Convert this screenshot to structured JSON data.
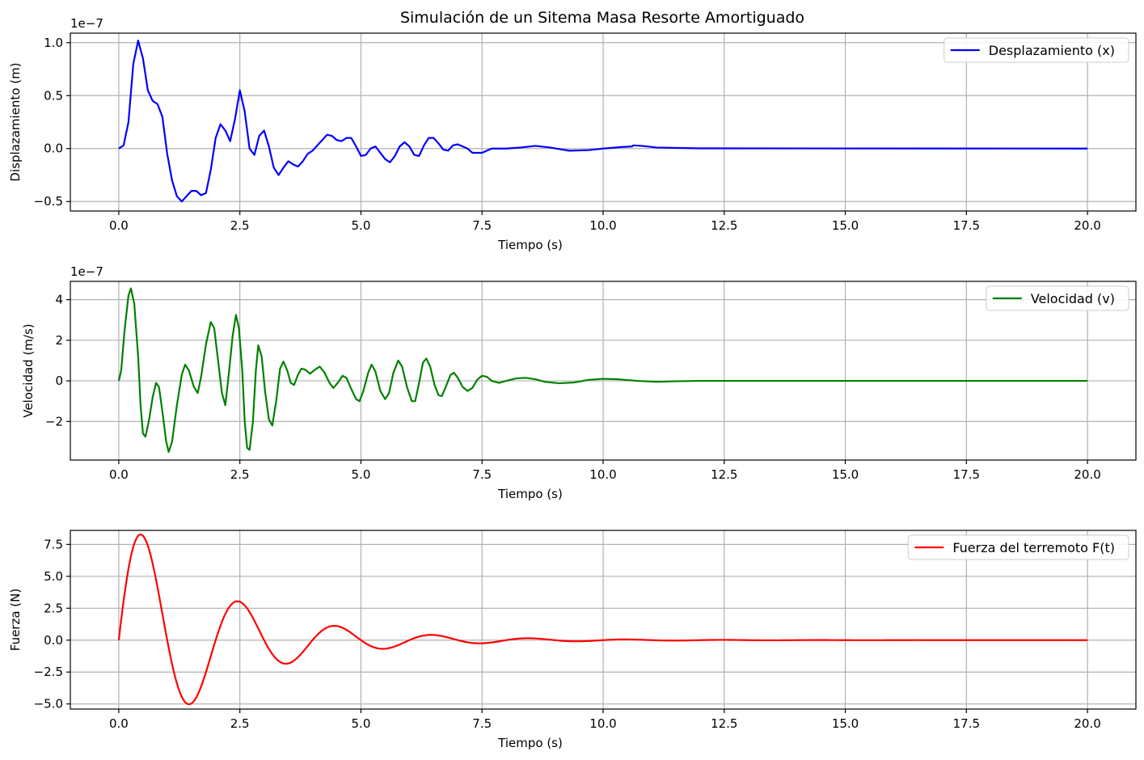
{
  "figure": {
    "title": "Simulación de un Sitema Masa Resorte Amortiguado"
  },
  "chart_data": [
    {
      "type": "line",
      "xlabel": "Tiempo (s)",
      "ylabel": "Displazamiento (m)",
      "offset_text": "1e−7",
      "xlim": [
        -1.0,
        21.0
      ],
      "ylim": [
        -0.59,
        1.09
      ],
      "xticks": [
        0,
        2.5,
        5,
        7.5,
        10,
        12.5,
        15,
        17.5,
        20
      ],
      "xtick_labels": [
        "0.0",
        "2.5",
        "5.0",
        "7.5",
        "10.0",
        "12.5",
        "15.0",
        "17.5",
        "20.0"
      ],
      "yticks": [
        -0.5,
        0,
        0.5,
        1.0
      ],
      "ytick_labels": [
        "−0.5",
        "0.0",
        "0.5",
        "1.0"
      ],
      "grid": true,
      "legend_position": "upper right",
      "series": [
        {
          "name": "Desplazamiento (x)",
          "color": "#0000ff",
          "points": [
            [
              0,
              0
            ],
            [
              0.1,
              0.03
            ],
            [
              0.2,
              0.25
            ],
            [
              0.3,
              0.8
            ],
            [
              0.4,
              1.02
            ],
            [
              0.5,
              0.85
            ],
            [
              0.6,
              0.55
            ],
            [
              0.7,
              0.45
            ],
            [
              0.8,
              0.42
            ],
            [
              0.9,
              0.3
            ],
            [
              1.0,
              -0.05
            ],
            [
              1.1,
              -0.3
            ],
            [
              1.2,
              -0.45
            ],
            [
              1.3,
              -0.5
            ],
            [
              1.4,
              -0.45
            ],
            [
              1.5,
              -0.4
            ],
            [
              1.6,
              -0.4
            ],
            [
              1.7,
              -0.44
            ],
            [
              1.8,
              -0.42
            ],
            [
              1.9,
              -0.2
            ],
            [
              2.0,
              0.1
            ],
            [
              2.1,
              0.23
            ],
            [
              2.2,
              0.17
            ],
            [
              2.3,
              0.07
            ],
            [
              2.4,
              0.28
            ],
            [
              2.5,
              0.55
            ],
            [
              2.6,
              0.35
            ],
            [
              2.7,
              0.0
            ],
            [
              2.8,
              -0.06
            ],
            [
              2.9,
              0.12
            ],
            [
              3.0,
              0.17
            ],
            [
              3.1,
              0.02
            ],
            [
              3.2,
              -0.18
            ],
            [
              3.3,
              -0.25
            ],
            [
              3.4,
              -0.18
            ],
            [
              3.5,
              -0.12
            ],
            [
              3.6,
              -0.15
            ],
            [
              3.7,
              -0.17
            ],
            [
              3.8,
              -0.12
            ],
            [
              3.9,
              -0.05
            ],
            [
              4.0,
              -0.02
            ],
            [
              4.1,
              0.03
            ],
            [
              4.2,
              0.08
            ],
            [
              4.3,
              0.13
            ],
            [
              4.4,
              0.12
            ],
            [
              4.5,
              0.08
            ],
            [
              4.6,
              0.07
            ],
            [
              4.7,
              0.1
            ],
            [
              4.8,
              0.1
            ],
            [
              4.9,
              0.02
            ],
            [
              5.0,
              -0.07
            ],
            [
              5.1,
              -0.06
            ],
            [
              5.2,
              0.0
            ],
            [
              5.3,
              0.02
            ],
            [
              5.4,
              -0.04
            ],
            [
              5.5,
              -0.1
            ],
            [
              5.6,
              -0.13
            ],
            [
              5.7,
              -0.07
            ],
            [
              5.8,
              0.02
            ],
            [
              5.9,
              0.06
            ],
            [
              6.0,
              0.02
            ],
            [
              6.1,
              -0.06
            ],
            [
              6.2,
              -0.07
            ],
            [
              6.3,
              0.03
            ],
            [
              6.4,
              0.1
            ],
            [
              6.5,
              0.1
            ],
            [
              6.6,
              0.05
            ],
            [
              6.7,
              -0.01
            ],
            [
              6.8,
              -0.02
            ],
            [
              6.9,
              0.03
            ],
            [
              7.0,
              0.04
            ],
            [
              7.2,
              0.0
            ],
            [
              7.3,
              -0.04
            ],
            [
              7.5,
              -0.04
            ],
            [
              7.7,
              0.0
            ],
            [
              8.0,
              0.0
            ],
            [
              8.3,
              0.01
            ],
            [
              8.6,
              0.025
            ],
            [
              8.9,
              0.01
            ],
            [
              9.3,
              -0.02
            ],
            [
              9.7,
              -0.015
            ],
            [
              10.0,
              0.0
            ],
            [
              10.4,
              0.015
            ],
            [
              10.6,
              0.02
            ],
            [
              10.62,
              0.03
            ],
            [
              10.8,
              0.025
            ],
            [
              11.1,
              0.01
            ],
            [
              12.0,
              0.002
            ],
            [
              20.0,
              0.0
            ]
          ]
        }
      ]
    },
    {
      "type": "line",
      "xlabel": "Tiempo (s)",
      "ylabel": "Velocidad (m/s)",
      "offset_text": "1e−7",
      "xlim": [
        -1.0,
        21.0
      ],
      "ylim": [
        -3.9,
        4.9
      ],
      "xticks": [
        0,
        2.5,
        5,
        7.5,
        10,
        12.5,
        15,
        17.5,
        20
      ],
      "xtick_labels": [
        "0.0",
        "2.5",
        "5.0",
        "7.5",
        "10.0",
        "12.5",
        "15.0",
        "17.5",
        "20.0"
      ],
      "yticks": [
        -2,
        0,
        2,
        4
      ],
      "ytick_labels": [
        "−2",
        "0",
        "2",
        "4"
      ],
      "grid": true,
      "legend_position": "upper right",
      "series": [
        {
          "name": "Velocidad (v)",
          "color": "#008000",
          "points": [
            [
              0,
              0
            ],
            [
              0.05,
              0.5
            ],
            [
              0.12,
              2.5
            ],
            [
              0.2,
              4.2
            ],
            [
              0.25,
              4.55
            ],
            [
              0.32,
              3.8
            ],
            [
              0.4,
              1.2
            ],
            [
              0.45,
              -1.2
            ],
            [
              0.5,
              -2.6
            ],
            [
              0.55,
              -2.75
            ],
            [
              0.62,
              -2.0
            ],
            [
              0.7,
              -0.8
            ],
            [
              0.77,
              -0.1
            ],
            [
              0.83,
              -0.3
            ],
            [
              0.9,
              -1.5
            ],
            [
              0.98,
              -3.0
            ],
            [
              1.03,
              -3.5
            ],
            [
              1.1,
              -3.0
            ],
            [
              1.2,
              -1.2
            ],
            [
              1.3,
              0.3
            ],
            [
              1.37,
              0.8
            ],
            [
              1.45,
              0.5
            ],
            [
              1.55,
              -0.3
            ],
            [
              1.63,
              -0.6
            ],
            [
              1.7,
              0.2
            ],
            [
              1.8,
              1.8
            ],
            [
              1.9,
              2.9
            ],
            [
              1.97,
              2.6
            ],
            [
              2.05,
              1.0
            ],
            [
              2.13,
              -0.6
            ],
            [
              2.2,
              -1.2
            ],
            [
              2.27,
              0.3
            ],
            [
              2.35,
              2.2
            ],
            [
              2.42,
              3.25
            ],
            [
              2.48,
              2.6
            ],
            [
              2.55,
              0.5
            ],
            [
              2.6,
              -2.0
            ],
            [
              2.65,
              -3.3
            ],
            [
              2.7,
              -3.4
            ],
            [
              2.77,
              -2.0
            ],
            [
              2.83,
              0.5
            ],
            [
              2.88,
              1.75
            ],
            [
              2.95,
              1.2
            ],
            [
              3.02,
              -0.5
            ],
            [
              3.1,
              -1.9
            ],
            [
              3.17,
              -2.2
            ],
            [
              3.25,
              -1.0
            ],
            [
              3.33,
              0.6
            ],
            [
              3.4,
              0.95
            ],
            [
              3.48,
              0.5
            ],
            [
              3.55,
              -0.1
            ],
            [
              3.62,
              -0.2
            ],
            [
              3.7,
              0.3
            ],
            [
              3.77,
              0.6
            ],
            [
              3.85,
              0.55
            ],
            [
              3.95,
              0.35
            ],
            [
              4.05,
              0.55
            ],
            [
              4.15,
              0.7
            ],
            [
              4.25,
              0.4
            ],
            [
              4.35,
              -0.1
            ],
            [
              4.43,
              -0.35
            ],
            [
              4.52,
              -0.1
            ],
            [
              4.62,
              0.25
            ],
            [
              4.7,
              0.15
            ],
            [
              4.8,
              -0.4
            ],
            [
              4.9,
              -0.9
            ],
            [
              4.97,
              -1.0
            ],
            [
              5.05,
              -0.5
            ],
            [
              5.15,
              0.4
            ],
            [
              5.22,
              0.8
            ],
            [
              5.3,
              0.45
            ],
            [
              5.4,
              -0.5
            ],
            [
              5.5,
              -0.9
            ],
            [
              5.58,
              -0.6
            ],
            [
              5.67,
              0.4
            ],
            [
              5.77,
              1.0
            ],
            [
              5.85,
              0.7
            ],
            [
              5.95,
              -0.3
            ],
            [
              6.05,
              -1.0
            ],
            [
              6.12,
              -1.0
            ],
            [
              6.2,
              -0.1
            ],
            [
              6.28,
              0.9
            ],
            [
              6.35,
              1.1
            ],
            [
              6.43,
              0.7
            ],
            [
              6.52,
              -0.2
            ],
            [
              6.6,
              -0.7
            ],
            [
              6.67,
              -0.75
            ],
            [
              6.75,
              -0.3
            ],
            [
              6.85,
              0.3
            ],
            [
              6.92,
              0.4
            ],
            [
              7.0,
              0.15
            ],
            [
              7.1,
              -0.3
            ],
            [
              7.2,
              -0.5
            ],
            [
              7.3,
              -0.35
            ],
            [
              7.4,
              0.05
            ],
            [
              7.5,
              0.25
            ],
            [
              7.6,
              0.2
            ],
            [
              7.7,
              0.0
            ],
            [
              7.85,
              -0.1
            ],
            [
              8.0,
              0.0
            ],
            [
              8.2,
              0.12
            ],
            [
              8.4,
              0.15
            ],
            [
              8.6,
              0.08
            ],
            [
              8.8,
              -0.05
            ],
            [
              9.1,
              -0.12
            ],
            [
              9.4,
              -0.08
            ],
            [
              9.7,
              0.05
            ],
            [
              10.0,
              0.1
            ],
            [
              10.3,
              0.08
            ],
            [
              10.7,
              0.0
            ],
            [
              11.1,
              -0.05
            ],
            [
              11.5,
              -0.02
            ],
            [
              12.0,
              0.0
            ],
            [
              20.0,
              0.0
            ]
          ]
        }
      ]
    },
    {
      "type": "line",
      "xlabel": "Tiempo (s)",
      "ylabel": "Fuerza (N)",
      "xlim": [
        -1.0,
        21.0
      ],
      "ylim": [
        -5.4,
        8.6
      ],
      "xticks": [
        0,
        2.5,
        5,
        7.5,
        10,
        12.5,
        15,
        17.5,
        20
      ],
      "xtick_labels": [
        "0.0",
        "2.5",
        "5.0",
        "7.5",
        "10.0",
        "12.5",
        "15.0",
        "17.5",
        "20.0"
      ],
      "yticks": [
        -5.0,
        -2.5,
        0,
        2.5,
        5.0,
        7.5
      ],
      "ytick_labels": [
        "−5.0",
        "−2.5",
        "0.0",
        "2.5",
        "5.0",
        "7.5"
      ],
      "grid": true,
      "legend_position": "upper right",
      "series": [
        {
          "name": "Fuerza del terremoto F(t)",
          "color": "#ff0000",
          "points": []
        }
      ]
    }
  ]
}
